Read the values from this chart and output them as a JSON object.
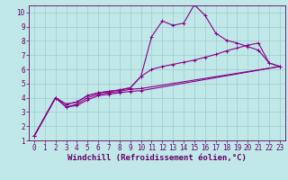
{
  "title": "",
  "xlabel": "Windchill (Refroidissement éolien,°C)",
  "ylabel": "",
  "bg_color": "#c0e8e8",
  "grid_color": "#a0cccc",
  "line_color": "#880088",
  "xlim": [
    -0.5,
    23.5
  ],
  "ylim": [
    1,
    10.5
  ],
  "xticks": [
    0,
    1,
    2,
    3,
    4,
    5,
    6,
    7,
    8,
    9,
    10,
    11,
    12,
    13,
    14,
    15,
    16,
    17,
    18,
    19,
    20,
    21,
    22,
    23
  ],
  "yticks": [
    1,
    2,
    3,
    4,
    5,
    6,
    7,
    8,
    9,
    10
  ],
  "line1_x": [
    0,
    2,
    3,
    4,
    5,
    6,
    7,
    8,
    9,
    10,
    11,
    12,
    13,
    14,
    15,
    16,
    17,
    18,
    19,
    20,
    21,
    22,
    23
  ],
  "line1_y": [
    1.3,
    4.0,
    3.55,
    3.7,
    4.15,
    4.35,
    4.45,
    4.55,
    4.7,
    5.5,
    8.3,
    9.4,
    9.1,
    9.25,
    10.55,
    9.8,
    8.55,
    8.05,
    7.85,
    7.6,
    7.35,
    6.45,
    6.2
  ],
  "line2_x": [
    0,
    2,
    3,
    4,
    5,
    6,
    7,
    8,
    9,
    10,
    11,
    12,
    13,
    14,
    15,
    16,
    17,
    18,
    19,
    20,
    21,
    22,
    23
  ],
  "line2_y": [
    1.3,
    4.0,
    3.55,
    3.7,
    4.15,
    4.35,
    4.45,
    4.55,
    4.7,
    5.5,
    6.0,
    6.2,
    6.35,
    6.5,
    6.65,
    6.85,
    7.05,
    7.3,
    7.5,
    7.7,
    7.85,
    6.45,
    6.2
  ],
  "line3_x": [
    0,
    2,
    3,
    4,
    5,
    6,
    7,
    8,
    9,
    10,
    23
  ],
  "line3_y": [
    1.3,
    4.0,
    3.35,
    3.55,
    4.0,
    4.25,
    4.35,
    4.45,
    4.6,
    4.65,
    6.2
  ],
  "line4_x": [
    0,
    2,
    3,
    4,
    5,
    6,
    7,
    8,
    9,
    10,
    23
  ],
  "line4_y": [
    1.3,
    4.0,
    3.35,
    3.45,
    3.85,
    4.15,
    4.25,
    4.35,
    4.45,
    4.5,
    6.2
  ],
  "marker": "+",
  "markersize": 3,
  "linewidth": 0.8,
  "xlabel_fontsize": 6.5,
  "tick_fontsize": 5.5
}
